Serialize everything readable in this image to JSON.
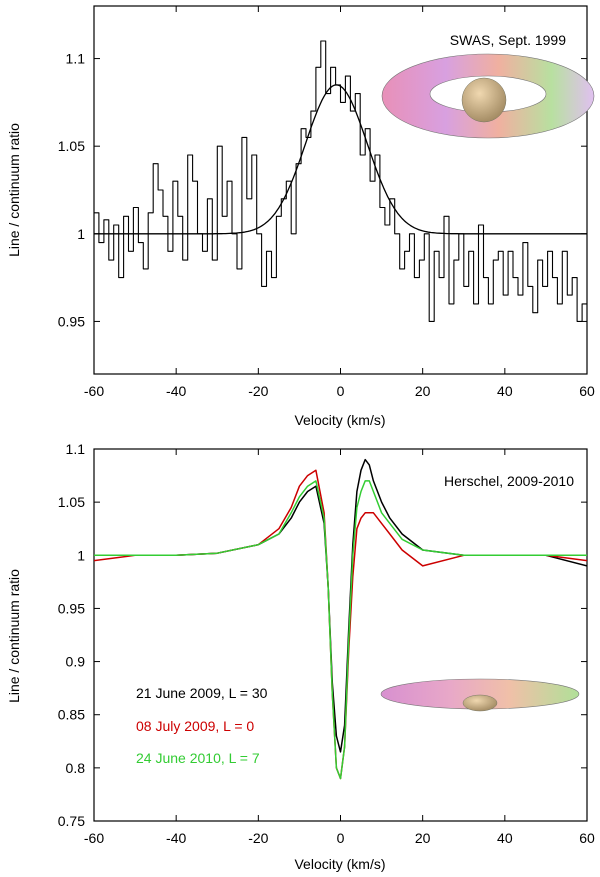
{
  "chart_data": [
    {
      "type": "line",
      "annotation": "SWAS, Sept. 1999",
      "xlabel": "Velocity (km/s)",
      "ylabel": "Line / continuum ratio",
      "xlim": [
        -60,
        60
      ],
      "ylim": [
        0.92,
        1.13
      ],
      "xticks": [
        -60,
        -40,
        -20,
        0,
        20,
        40,
        60
      ],
      "xtick_labels": [
        "-60",
        "-40",
        "-20",
        "0",
        "20",
        "40",
        "60"
      ],
      "yticks": [
        0.95,
        1.0,
        1.05,
        1.1
      ],
      "ytick_labels": [
        "0.95",
        "1",
        "1.05",
        "1.1"
      ],
      "grid": false,
      "inset": "torus",
      "series": [
        {
          "style": "step",
          "color": "#000000",
          "x": [
            -60,
            -58.8,
            -57.6,
            -56.4,
            -55.2,
            -54,
            -52.8,
            -51.6,
            -50.4,
            -49.2,
            -48,
            -46.8,
            -45.6,
            -44.4,
            -43.2,
            -42,
            -40.8,
            -39.6,
            -38.4,
            -37.2,
            -36,
            -34.8,
            -33.6,
            -32.4,
            -31.2,
            -30,
            -28.8,
            -27.6,
            -26.4,
            -25.2,
            -24,
            -22.8,
            -21.6,
            -20.4,
            -19.2,
            -18,
            -16.8,
            -15.6,
            -14.4,
            -13.2,
            -12,
            -10.8,
            -9.6,
            -8.4,
            -7.2,
            -6,
            -4.8,
            -3.6,
            -2.4,
            -1.2,
            0,
            1.2,
            2.4,
            3.6,
            4.8,
            6,
            7.2,
            8.4,
            9.6,
            10.8,
            12,
            13.2,
            14.4,
            15.6,
            16.8,
            18,
            19.2,
            20.4,
            21.6,
            22.8,
            24,
            25.2,
            26.4,
            27.6,
            28.8,
            30,
            31.2,
            32.4,
            33.6,
            34.8,
            36,
            37.2,
            38.4,
            39.6,
            40.8,
            42,
            43.2,
            44.4,
            45.6,
            46.8,
            48,
            49.2,
            50.4,
            51.6,
            52.8,
            54,
            55.2,
            56.4,
            57.6,
            58.8
          ],
          "y": [
            1.012,
            0.995,
            1.008,
            0.985,
            1.005,
            0.975,
            1.01,
            0.99,
            1.015,
            0.995,
            0.98,
            1.012,
            1.04,
            1.025,
            1.01,
            0.99,
            1.03,
            1.01,
            0.985,
            1.045,
            1.03,
            1.0,
            0.99,
            1.02,
            0.985,
            1.05,
            1.01,
            1.03,
            1.0,
            0.98,
            1.055,
            1.02,
            1.045,
            1.0,
            0.97,
            0.99,
            0.975,
            1.01,
            1.02,
            1.03,
            1.0,
            1.04,
            1.06,
            1.055,
            1.07,
            1.095,
            1.11,
            1.08,
            1.095,
            1.085,
            1.075,
            1.09,
            1.07,
            1.08,
            1.045,
            1.06,
            1.03,
            1.045,
            1.015,
            1.005,
            1.02,
            1.0,
            0.98,
            0.99,
            1.0,
            0.975,
            0.985,
            1.0,
            0.95,
            0.99,
            0.975,
            1.01,
            0.96,
            0.985,
            1.0,
            0.97,
            0.99,
            0.96,
            1.005,
            0.975,
            0.96,
            0.985,
            0.99,
            0.965,
            0.99,
            0.975,
            0.965,
            0.995,
            0.97,
            0.955,
            0.985,
            0.97,
            0.99,
            0.975,
            0.96,
            0.99,
            0.965,
            0.975,
            0.95,
            0.96
          ]
        },
        {
          "style": "fit",
          "color": "#000000",
          "baseline": 1.0,
          "amplitude": 0.085,
          "center": -1,
          "width": 7.5
        }
      ]
    },
    {
      "type": "line",
      "annotation": "Herschel, 2009-2010",
      "xlabel": "Velocity (km/s)",
      "ylabel": "Line / continuum ratio",
      "xlim": [
        -60,
        60
      ],
      "ylim": [
        0.75,
        1.1
      ],
      "xticks": [
        -60,
        -40,
        -20,
        0,
        20,
        40,
        60
      ],
      "xtick_labels": [
        "-60",
        "-40",
        "-20",
        "0",
        "20",
        "40",
        "60"
      ],
      "yticks": [
        0.75,
        0.8,
        0.85,
        0.9,
        0.95,
        1.0,
        1.05,
        1.1
      ],
      "ytick_labels": [
        "0.75",
        "0.8",
        "0.85",
        "0.9",
        "0.95",
        "1",
        "1.05",
        "1.1"
      ],
      "grid": false,
      "inset": "flattened-disk",
      "legend_location": "lower-left",
      "series": [
        {
          "name": "21 June 2009, L = 30",
          "color": "#000000",
          "x": [
            -60,
            -50,
            -40,
            -30,
            -20,
            -15,
            -12,
            -10,
            -8,
            -6,
            -4,
            -3,
            -2,
            -1,
            0,
            1,
            2,
            3,
            4,
            5,
            6,
            7,
            8,
            10,
            12,
            15,
            20,
            30,
            40,
            50,
            60
          ],
          "y": [
            1.0,
            1.0,
            1.0,
            1.002,
            1.01,
            1.02,
            1.035,
            1.05,
            1.06,
            1.065,
            1.03,
            0.97,
            0.88,
            0.83,
            0.815,
            0.84,
            0.93,
            1.01,
            1.06,
            1.08,
            1.09,
            1.085,
            1.07,
            1.05,
            1.035,
            1.02,
            1.005,
            1.0,
            1.0,
            1.0,
            0.99
          ]
        },
        {
          "name": "08 July 2009, L = 0",
          "color": "#cc0000",
          "x": [
            -60,
            -50,
            -40,
            -30,
            -20,
            -15,
            -12,
            -10,
            -8,
            -6,
            -4,
            -3,
            -2,
            -1,
            0,
            1,
            2,
            3,
            4,
            5,
            6,
            7,
            8,
            10,
            12,
            15,
            20,
            30,
            40,
            50,
            60
          ],
          "y": [
            0.995,
            1.0,
            1.0,
            1.002,
            1.01,
            1.025,
            1.045,
            1.065,
            1.075,
            1.08,
            1.04,
            0.97,
            0.87,
            0.8,
            0.79,
            0.82,
            0.91,
            0.98,
            1.025,
            1.035,
            1.04,
            1.04,
            1.04,
            1.03,
            1.02,
            1.005,
            0.99,
            1.0,
            1.0,
            1.0,
            0.995
          ]
        },
        {
          "name": "24 June 2010, L = 7",
          "color": "#33cc33",
          "x": [
            -60,
            -50,
            -40,
            -30,
            -20,
            -15,
            -12,
            -10,
            -8,
            -6,
            -4,
            -3,
            -2,
            -1,
            0,
            1,
            2,
            3,
            4,
            5,
            6,
            7,
            8,
            10,
            12,
            15,
            20,
            30,
            40,
            50,
            60
          ],
          "y": [
            1.0,
            1.0,
            1.0,
            1.002,
            1.01,
            1.02,
            1.04,
            1.055,
            1.065,
            1.07,
            1.035,
            0.97,
            0.87,
            0.8,
            0.79,
            0.82,
            0.92,
            1.0,
            1.045,
            1.06,
            1.07,
            1.07,
            1.06,
            1.04,
            1.03,
            1.015,
            1.005,
            1.0,
            1.0,
            1.0,
            1.0
          ]
        }
      ]
    }
  ]
}
